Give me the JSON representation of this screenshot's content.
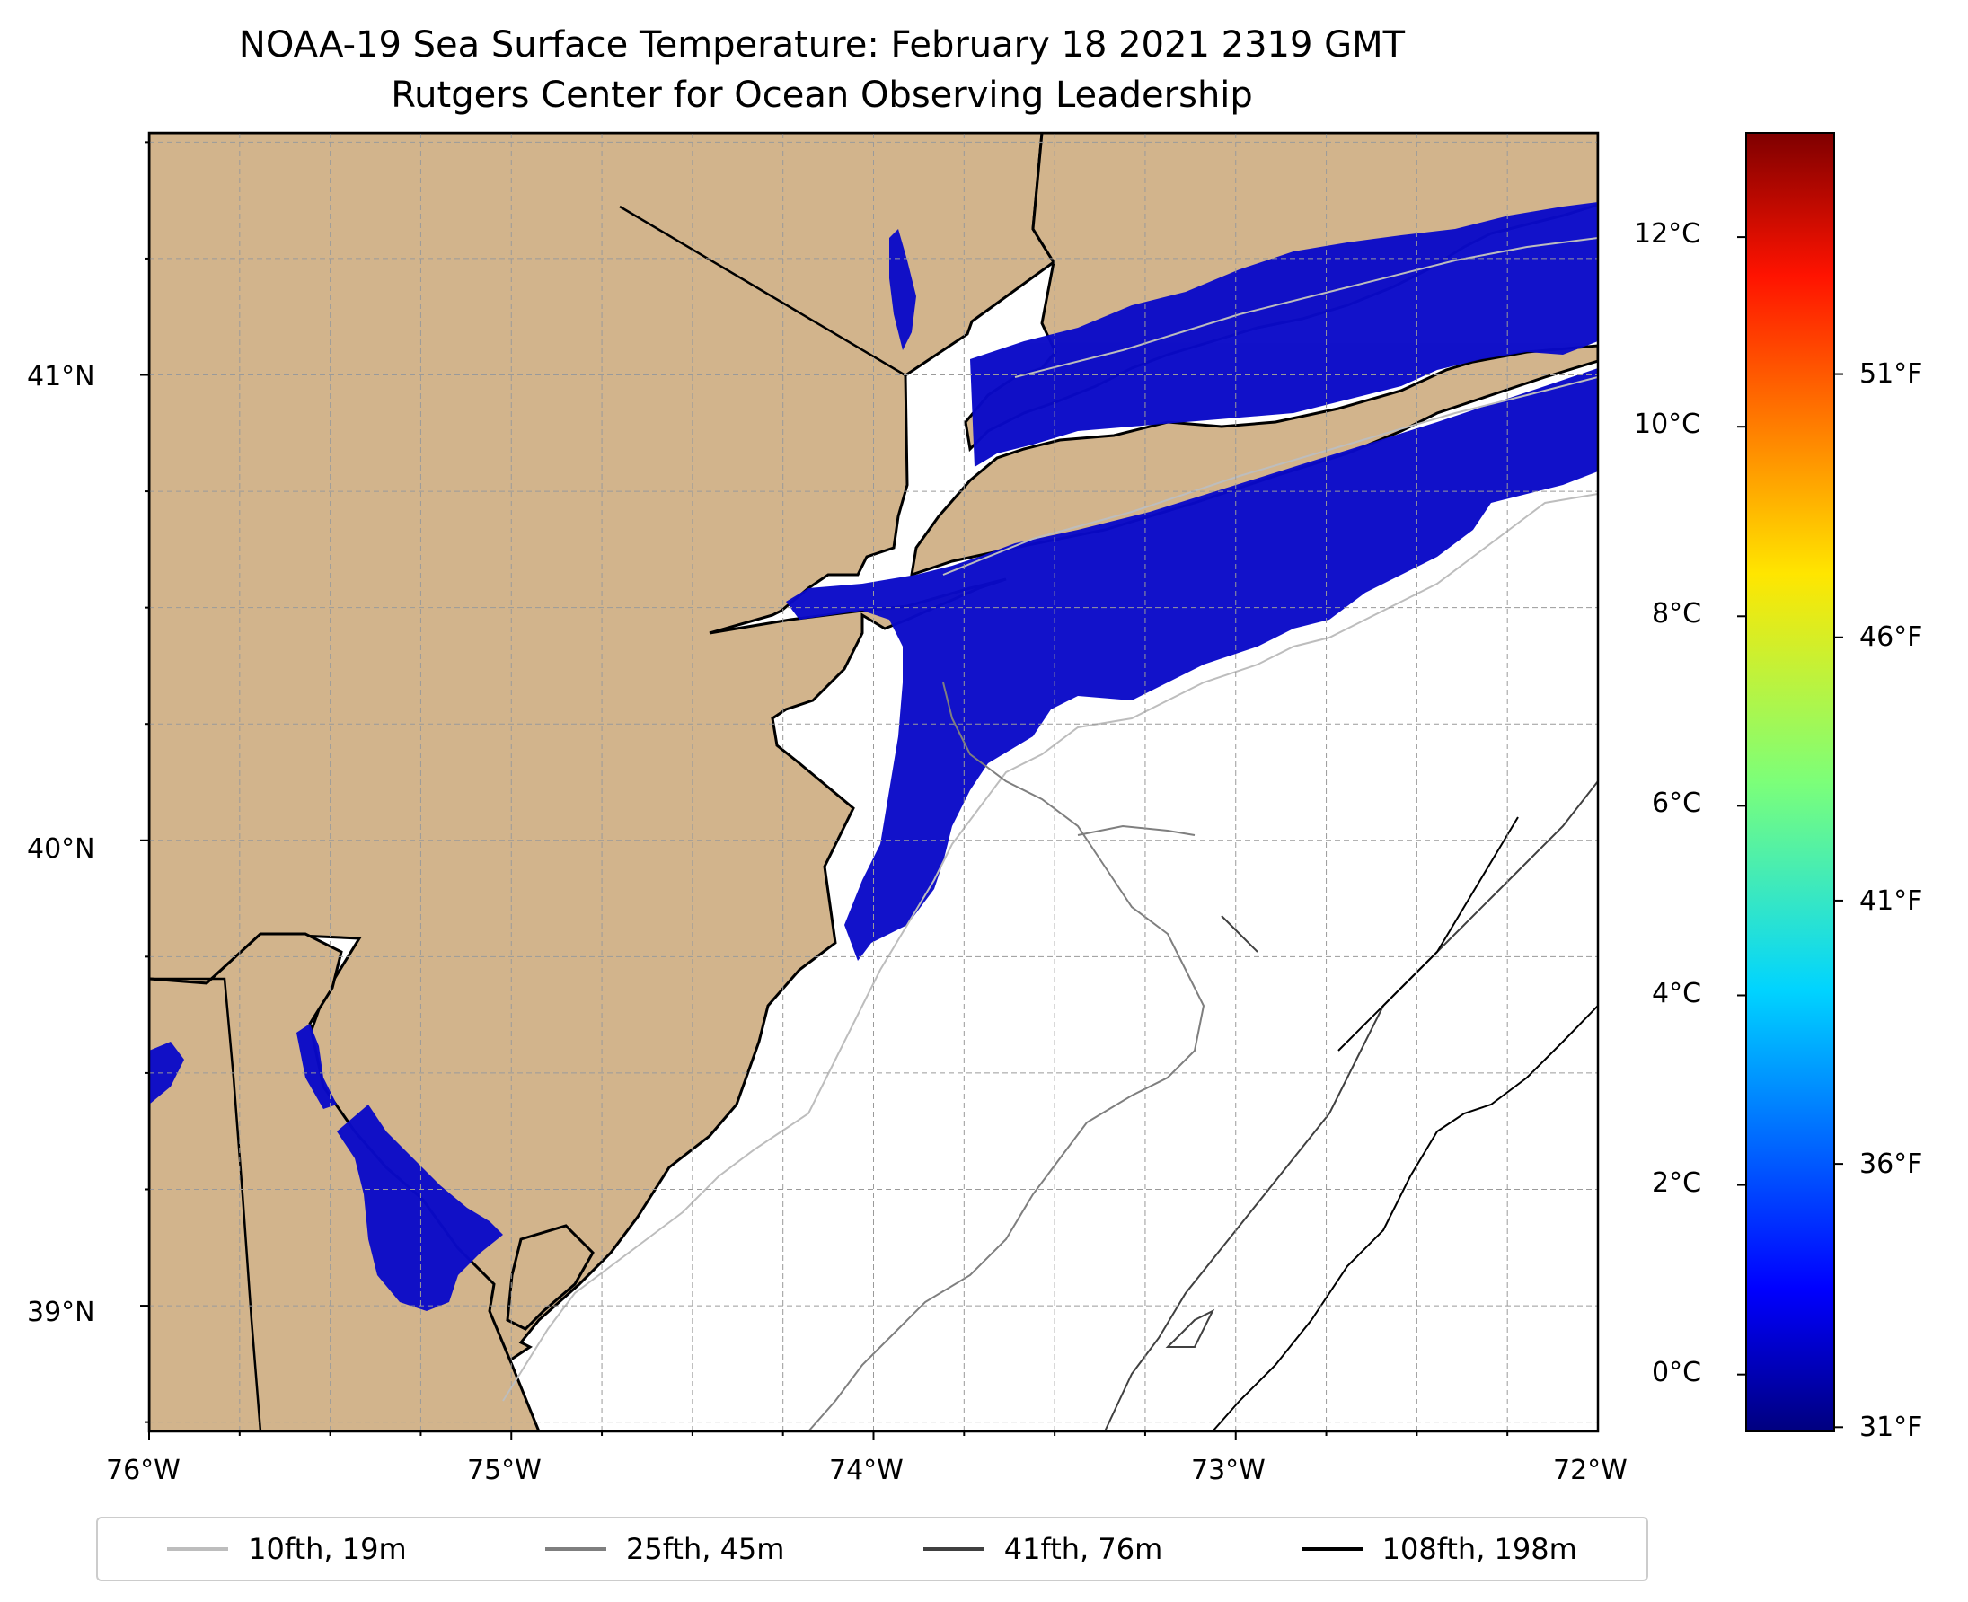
{
  "map": {
    "title_line1": "NOAA-19 Sea Surface Temperature: February 18 2021 2319 GMT",
    "title_line2": "Rutgers Center for Ocean Observing Leadership",
    "lon_ticks": [
      "76°W",
      "75°W",
      "74°W",
      "73°W",
      "72°W"
    ],
    "lat_ticks": [
      "41°N",
      "40°N",
      "39°N"
    ],
    "lon_range": [
      -76.0,
      -72.0
    ],
    "lat_range": [
      38.73,
      41.52
    ],
    "land_color": "#d2b48c",
    "ocean_color": "#ffffff",
    "sst_color": "#0a0ac8",
    "gridlines": true
  },
  "colorbar": {
    "colormap": "jet",
    "celsius_ticks": [
      "0°C",
      "2°C",
      "4°C",
      "6°C",
      "8°C",
      "10°C",
      "12°C"
    ],
    "fahrenheit_ticks": [
      "31°F",
      "36°F",
      "41°F",
      "46°F",
      "51°F"
    ],
    "range_celsius": [
      -0.6,
      13.1
    ]
  },
  "legend": {
    "entries": [
      {
        "label": "10fth, 19m",
        "color": "#bdbdbd"
      },
      {
        "label": "25fth, 45m",
        "color": "#7f7f7f"
      },
      {
        "label": "41fth, 76m",
        "color": "#404040"
      },
      {
        "label": "108fth, 198m",
        "color": "#000000"
      }
    ]
  }
}
